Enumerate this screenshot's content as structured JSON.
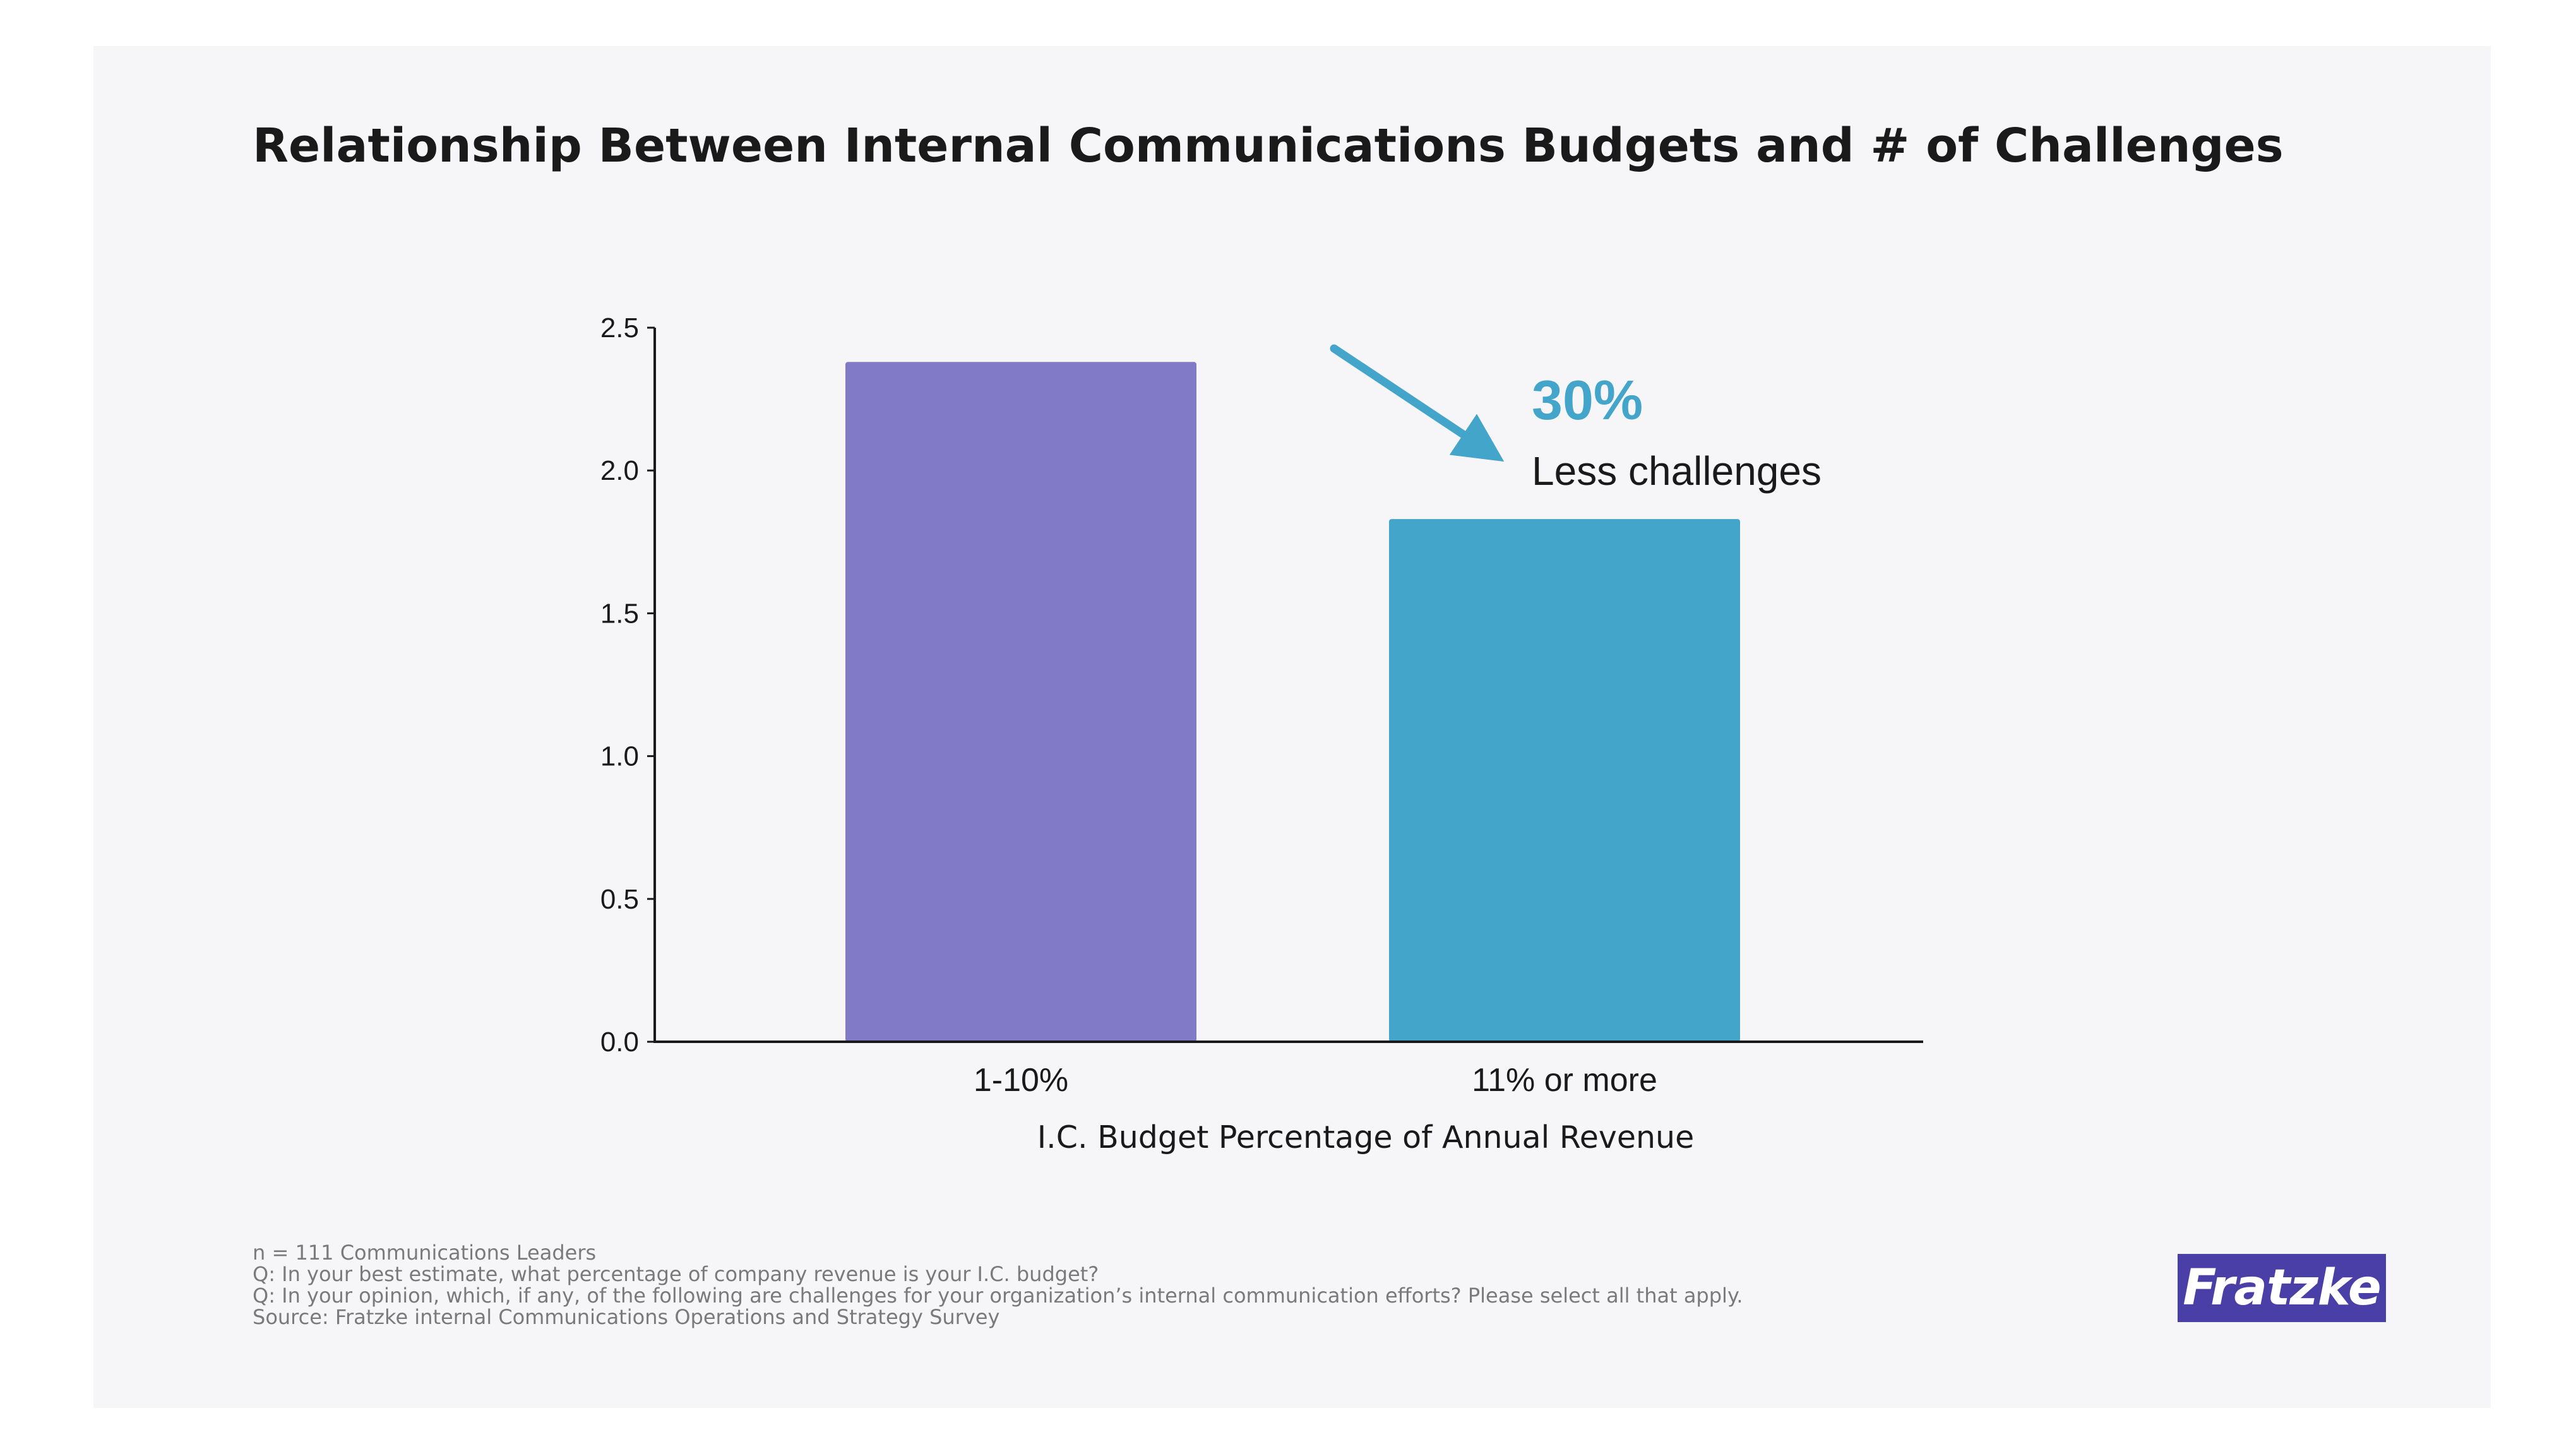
{
  "colors": {
    "background": "#f6f6f9",
    "bar_1": "#817ac6",
    "bar_2": "#44a5cb",
    "accent": "#44a5cb",
    "logo_bg": "#4a3fa6"
  },
  "chart_data": {
    "type": "bar",
    "title": "Relationship Between Internal Communications Budgets and # of Challenges",
    "xlabel": "I.C. Budget Percentage of Annual Revenue",
    "ylabel": "",
    "categories": [
      "1-10%",
      "11% or more"
    ],
    "values": [
      2.38,
      1.83
    ],
    "ylim": [
      0,
      2.5
    ],
    "yticks": [
      "0.0",
      "0.5",
      "1.0",
      "1.5",
      "2.0",
      "2.5"
    ],
    "grid": false,
    "annotation": {
      "value": "30%",
      "text": "Less challenges",
      "icon": "down-right-arrow-icon"
    }
  },
  "footnotes": [
    "n = 111 Communications Leaders",
    "Q: In your best estimate, what percentage of company revenue is your I.C. budget?",
    "Q: In your opinion, which, if any, of the following are challenges for your organization’s internal communication efforts? Please select all that apply.",
    "Source: Fratzke internal Communications Operations and Strategy Survey"
  ],
  "logo": {
    "text": "Fratzke"
  }
}
